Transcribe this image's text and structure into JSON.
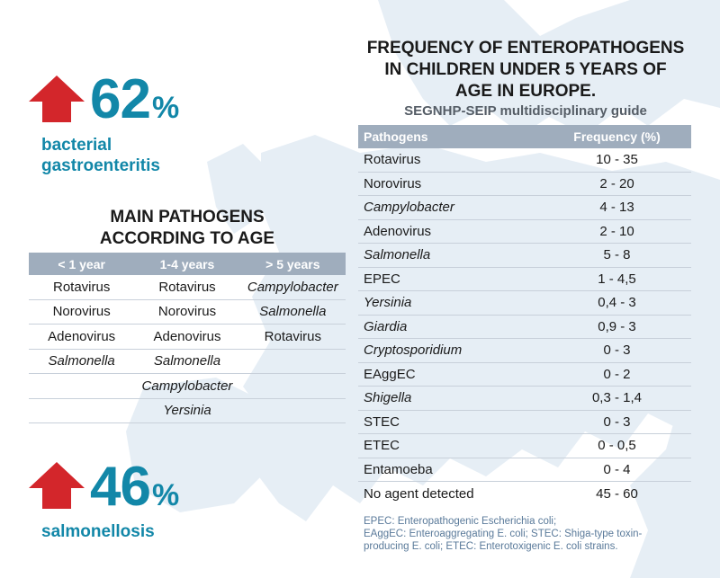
{
  "colors": {
    "accent_blue": "#1287a8",
    "arrow_red": "#d3262b",
    "header_gray": "#9fadbd",
    "map_land": "#e6eef5"
  },
  "stat_bacterial": {
    "icon": "arrow-up-icon",
    "number": "62",
    "unit": "%",
    "label_line1": "bacterial",
    "label_line2": "gastroenteritis"
  },
  "stat_salmonellosis": {
    "icon": "arrow-up-icon",
    "number": "46",
    "unit": "%",
    "label": "salmonellosis"
  },
  "age_table": {
    "title_line1": "MAIN PATHOGENS",
    "title_line2": "ACCORDING TO AGE",
    "headers": [
      "< 1 year",
      "1-4 years",
      "> 5 years"
    ],
    "rows": [
      [
        {
          "t": "Rotavirus",
          "i": false
        },
        {
          "t": "Rotavirus",
          "i": false
        },
        {
          "t": "Campylobacter",
          "i": true
        }
      ],
      [
        {
          "t": "Norovirus",
          "i": false
        },
        {
          "t": "Norovirus",
          "i": false
        },
        {
          "t": "Salmonella",
          "i": true
        }
      ],
      [
        {
          "t": "Adenovirus",
          "i": false
        },
        {
          "t": "Adenovirus",
          "i": false
        },
        {
          "t": "Rotavirus",
          "i": false
        }
      ],
      [
        {
          "t": "Salmonella",
          "i": true
        },
        {
          "t": "Salmonella",
          "i": true
        },
        {
          "t": "",
          "i": false
        }
      ]
    ],
    "spanning_rows": [
      {
        "t": "Campylobacter",
        "i": true
      },
      {
        "t": "Yersinia",
        "i": true
      }
    ]
  },
  "freq_table": {
    "title_line1": "FREQUENCY OF ENTEROPATHOGENS",
    "title_line2": "IN CHILDREN UNDER 5 YEARS OF",
    "title_line3": "AGE IN EUROPE.",
    "subtitle": "SEGNHP-SEIP multidisciplinary guide",
    "headers": [
      "Pathogens",
      "Frequency (%)"
    ],
    "rows": [
      {
        "name": "Rotavirus",
        "freq": "10 - 35",
        "i": false
      },
      {
        "name": "Norovirus",
        "freq": "2 - 20",
        "i": false
      },
      {
        "name": "Campylobacter",
        "freq": "4 - 13",
        "i": true
      },
      {
        "name": "Adenovirus",
        "freq": "2 - 10",
        "i": false
      },
      {
        "name": "Salmonella",
        "freq": "5 - 8",
        "i": true
      },
      {
        "name": "EPEC",
        "freq": "1 - 4,5",
        "i": false
      },
      {
        "name": "Yersinia",
        "freq": "0,4 - 3",
        "i": true
      },
      {
        "name": "Giardia",
        "freq": "0,9 - 3",
        "i": true
      },
      {
        "name": "Cryptosporidium",
        "freq": "0 - 3",
        "i": true
      },
      {
        "name": "EAggEC",
        "freq": "0 - 2",
        "i": false
      },
      {
        "name": "Shigella",
        "freq": "0,3 - 1,4",
        "i": true
      },
      {
        "name": "STEC",
        "freq": "0 - 3",
        "i": false
      },
      {
        "name": "ETEC",
        "freq": "0 - 0,5",
        "i": false
      },
      {
        "name": "Entamoeba",
        "freq": "0 - 4",
        "i": false
      },
      {
        "name": "No agent detected",
        "freq": "45 - 60",
        "i": false
      }
    ]
  },
  "footnote": {
    "line1": "EPEC: Enteropathogenic Escherichia coli;",
    "line2": "EAggEC: Enteroaggregating E. coli; STEC: Shiga-type toxin-",
    "line3": "producing E. coli; ETEC: Enterotoxigenic E. coli strains."
  }
}
